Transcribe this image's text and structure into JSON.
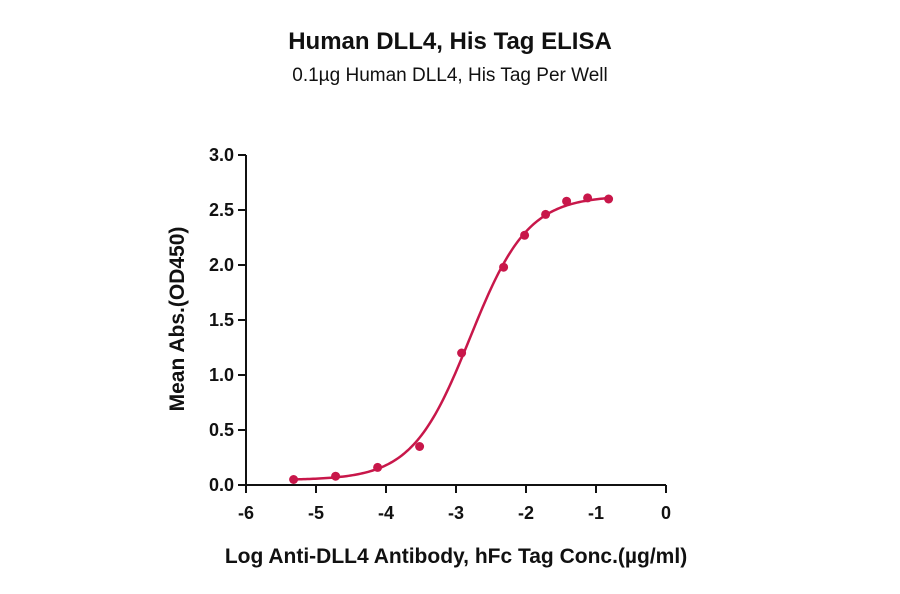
{
  "chart_data": {
    "type": "scatter",
    "title": "Human DLL4, His Tag ELISA",
    "subtitle": "0.1µg Human DLL4, His Tag Per Well",
    "xlabel": "Log Anti-DLL4 Antibody, hFc Tag Conc.(µg/ml)",
    "ylabel": "Mean Abs.(OD450)",
    "xlim": [
      -6,
      0
    ],
    "ylim": [
      0,
      3.0
    ],
    "x_ticks": [
      "-6",
      "-5",
      "-4",
      "-3",
      "-2",
      "-1",
      "0"
    ],
    "y_ticks": [
      "0.0",
      "0.5",
      "1.0",
      "1.5",
      "2.0",
      "2.5",
      "3.0"
    ],
    "grid": false,
    "color": "#c8174a",
    "series": [
      {
        "x": [
          -5.32,
          -4.72,
          -4.12,
          -3.52,
          -2.92,
          -2.32,
          -2.02,
          -1.72,
          -1.42,
          -1.12,
          -0.82
        ],
        "y": [
          0.05,
          0.08,
          0.16,
          0.35,
          1.2,
          1.98,
          2.27,
          2.46,
          2.58,
          2.61,
          2.6
        ]
      }
    ],
    "fit_curve": {
      "type": "4PL",
      "bottom": 0.045,
      "top": 2.63,
      "log_ec50": -2.8,
      "hill_slope": 1.05
    }
  }
}
